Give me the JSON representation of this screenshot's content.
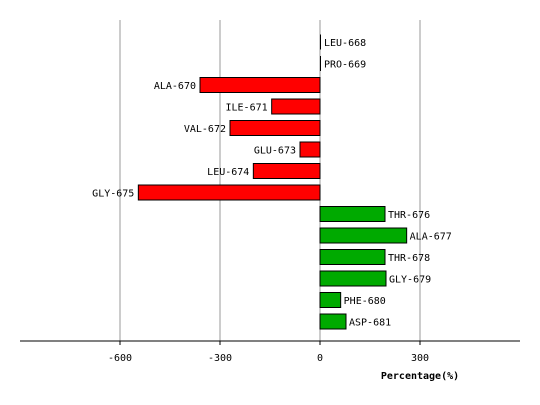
{
  "chart_data": {
    "type": "bar",
    "orientation": "horizontal",
    "title": "",
    "xlabel": "Percentage(%)",
    "ylabel": "",
    "xlim": [
      -900,
      600
    ],
    "xticks": [
      -600,
      -300,
      0,
      300
    ],
    "grid": true,
    "categories": [
      "LEU-668",
      "PRO-669",
      "ALA-670",
      "ILE-671",
      "VAL-672",
      "GLU-673",
      "LEU-674",
      "GLY-675",
      "THR-676",
      "ALA-677",
      "THR-678",
      "GLY-679",
      "PHE-680",
      "ASP-681"
    ],
    "values": [
      0,
      0,
      -360,
      -145,
      -270,
      -60,
      -200,
      -545,
      195,
      260,
      195,
      198,
      62,
      78
    ],
    "colors": {
      "negative": "#ff0000",
      "positive": "#00aa00",
      "zero": "#000000",
      "grid": "#999999",
      "axis": "#000000"
    }
  }
}
